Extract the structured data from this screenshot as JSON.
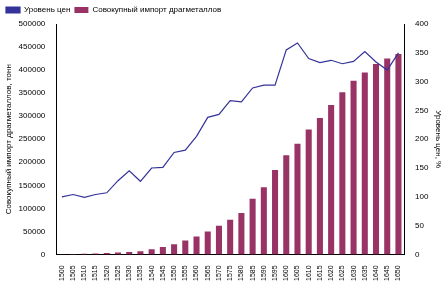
{
  "chart_data": {
    "type": "bar",
    "y_label": "Совокупный импорт драгметаллов, тонн",
    "y2_label": "Уровень цен, %",
    "categories": [
      "1500",
      "1505",
      "1510",
      "1515",
      "1520",
      "1525",
      "1530",
      "1535",
      "1540",
      "1545",
      "1550",
      "1555",
      "1560",
      "1565",
      "1570",
      "1575",
      "1580",
      "1585",
      "1590",
      "1595",
      "1600",
      "1605",
      "1610",
      "1615",
      "1620",
      "1625",
      "1630",
      "1635",
      "1640",
      "1645",
      "1650"
    ],
    "series": [
      {
        "name": "Совокупный импорт драгметаллов",
        "type": "bar",
        "color": "#993366",
        "values": [
          500,
          1000,
          1500,
          2000,
          3000,
          4000,
          5000,
          7000,
          11000,
          16000,
          22000,
          30000,
          39000,
          50000,
          62000,
          75000,
          90000,
          121000,
          146000,
          183000,
          215000,
          240000,
          271000,
          296000,
          324000,
          352000,
          377000,
          395000,
          413000,
          425000,
          435000
        ]
      },
      {
        "name": "Уровень цен",
        "type": "line",
        "color": "#333399",
        "axis": "y2",
        "values": [
          100,
          104,
          99,
          104,
          107,
          128,
          145,
          127,
          150,
          151,
          177,
          181,
          205,
          238,
          243,
          267,
          265,
          289,
          294,
          294,
          355,
          367,
          340,
          333,
          337,
          331,
          335,
          352,
          334,
          320,
          350
        ]
      }
    ],
    "ylim": [
      0,
      500000
    ],
    "yticks": [
      0,
      50000,
      100000,
      150000,
      200000,
      250000,
      300000,
      350000,
      400000,
      450000,
      500000
    ],
    "y2lim": [
      0,
      400
    ],
    "y2ticks": [
      0,
      50,
      100,
      150,
      200,
      250,
      300,
      350,
      400
    ],
    "grid": false,
    "legend": "upper left"
  }
}
